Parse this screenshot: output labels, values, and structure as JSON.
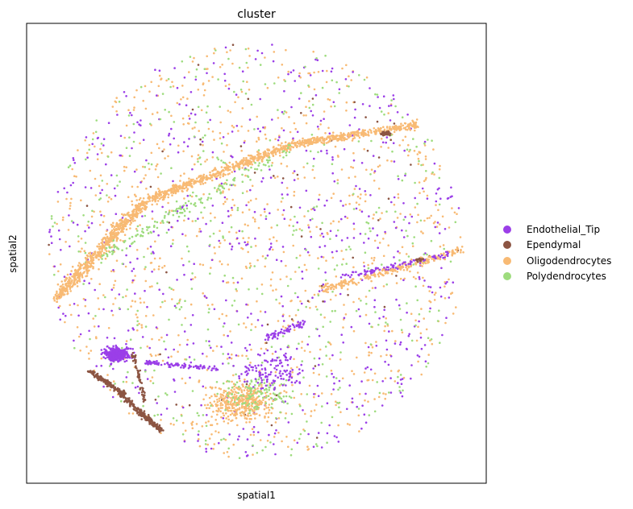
{
  "chart_data": {
    "type": "scatter",
    "title": "cluster",
    "xlabel": "spatial1",
    "ylabel": "spatial2",
    "xticks": [],
    "yticks": [],
    "grid": false,
    "legend_placement": "right",
    "series": [
      {
        "name": "Endothelial_Tip",
        "color": "#9B3FE8"
      },
      {
        "name": "Ependymal",
        "color": "#8C5543"
      },
      {
        "name": "Oligodendrocytes",
        "color": "#F8BA74"
      },
      {
        "name": "Polydendrocytes",
        "color": "#9EDC7E"
      }
    ]
  }
}
